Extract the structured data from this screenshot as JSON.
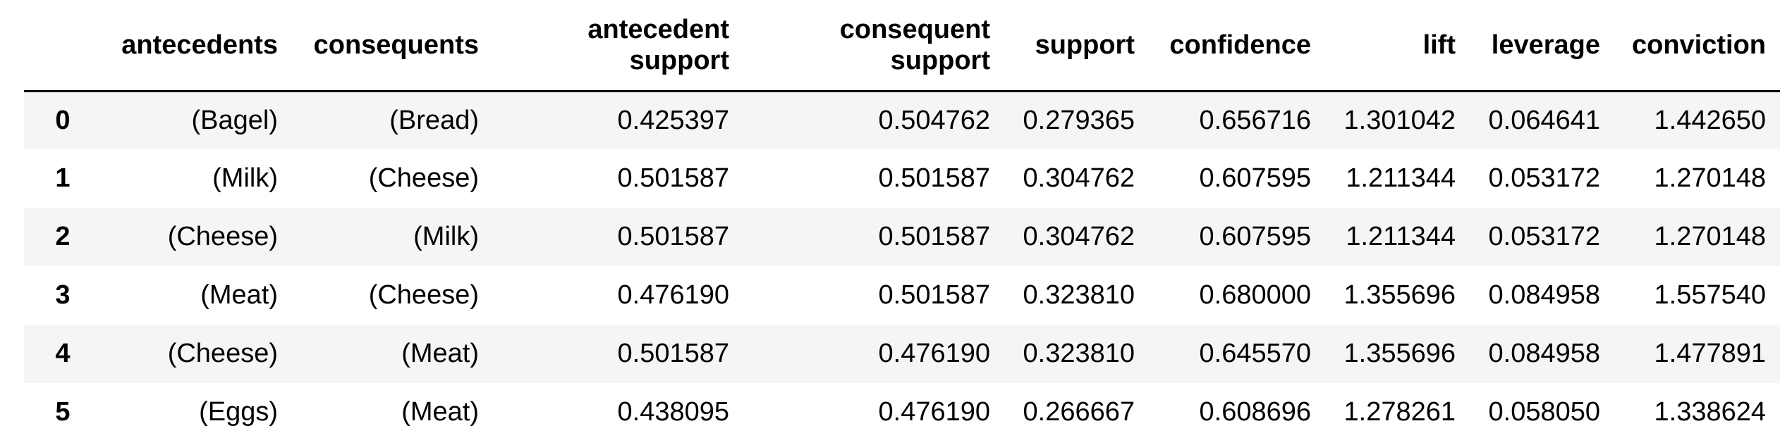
{
  "columns": [
    {
      "line1": "",
      "line2": ""
    },
    {
      "line1": "",
      "line2": "antecedents"
    },
    {
      "line1": "",
      "line2": "consequents"
    },
    {
      "line1": "antecedent",
      "line2": "support"
    },
    {
      "line1": "consequent",
      "line2": "support"
    },
    {
      "line1": "",
      "line2": "support"
    },
    {
      "line1": "",
      "line2": "confidence"
    },
    {
      "line1": "",
      "line2": "lift"
    },
    {
      "line1": "",
      "line2": "leverage"
    },
    {
      "line1": "",
      "line2": "conviction"
    }
  ],
  "rows": [
    {
      "index": "0",
      "antecedents": "(Bagel)",
      "consequents": "(Bread)",
      "antecedent_support": "0.425397",
      "consequent_support": "0.504762",
      "support": "0.279365",
      "confidence": "0.656716",
      "lift": "1.301042",
      "leverage": "0.064641",
      "conviction": "1.442650"
    },
    {
      "index": "1",
      "antecedents": "(Milk)",
      "consequents": "(Cheese)",
      "antecedent_support": "0.501587",
      "consequent_support": "0.501587",
      "support": "0.304762",
      "confidence": "0.607595",
      "lift": "1.211344",
      "leverage": "0.053172",
      "conviction": "1.270148"
    },
    {
      "index": "2",
      "antecedents": "(Cheese)",
      "consequents": "(Milk)",
      "antecedent_support": "0.501587",
      "consequent_support": "0.501587",
      "support": "0.304762",
      "confidence": "0.607595",
      "lift": "1.211344",
      "leverage": "0.053172",
      "conviction": "1.270148"
    },
    {
      "index": "3",
      "antecedents": "(Meat)",
      "consequents": "(Cheese)",
      "antecedent_support": "0.476190",
      "consequent_support": "0.501587",
      "support": "0.323810",
      "confidence": "0.680000",
      "lift": "1.355696",
      "leverage": "0.084958",
      "conviction": "1.557540"
    },
    {
      "index": "4",
      "antecedents": "(Cheese)",
      "consequents": "(Meat)",
      "antecedent_support": "0.501587",
      "consequent_support": "0.476190",
      "support": "0.323810",
      "confidence": "0.645570",
      "lift": "1.355696",
      "leverage": "0.084958",
      "conviction": "1.477891"
    },
    {
      "index": "5",
      "antecedents": "(Eggs)",
      "consequents": "(Meat)",
      "antecedent_support": "0.438095",
      "consequent_support": "0.476190",
      "support": "0.266667",
      "confidence": "0.608696",
      "lift": "1.278261",
      "leverage": "0.058050",
      "conviction": "1.338624"
    }
  ]
}
